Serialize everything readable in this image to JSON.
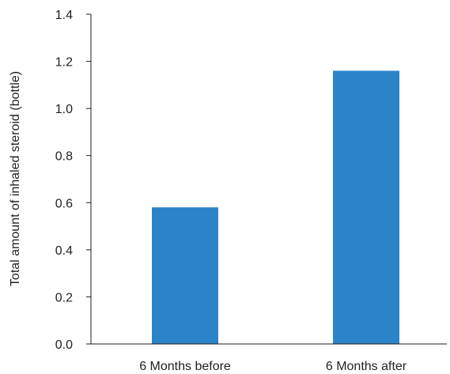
{
  "chart_data": {
    "type": "bar",
    "categories": [
      "6 Months before",
      "6 Months after"
    ],
    "values": [
      0.58,
      1.16
    ],
    "ylabel": "Total amount of inhaled steroid (bottle)",
    "xlabel": "",
    "ylim": [
      0,
      1.4
    ],
    "yticks": [
      "0.0",
      "0.2",
      "0.4",
      "0.6",
      "0.8",
      "1.0",
      "1.2",
      "1.4"
    ],
    "grid": false,
    "legend": "none",
    "bar_color": "#2b83c8",
    "axis_color": "#231f20"
  }
}
